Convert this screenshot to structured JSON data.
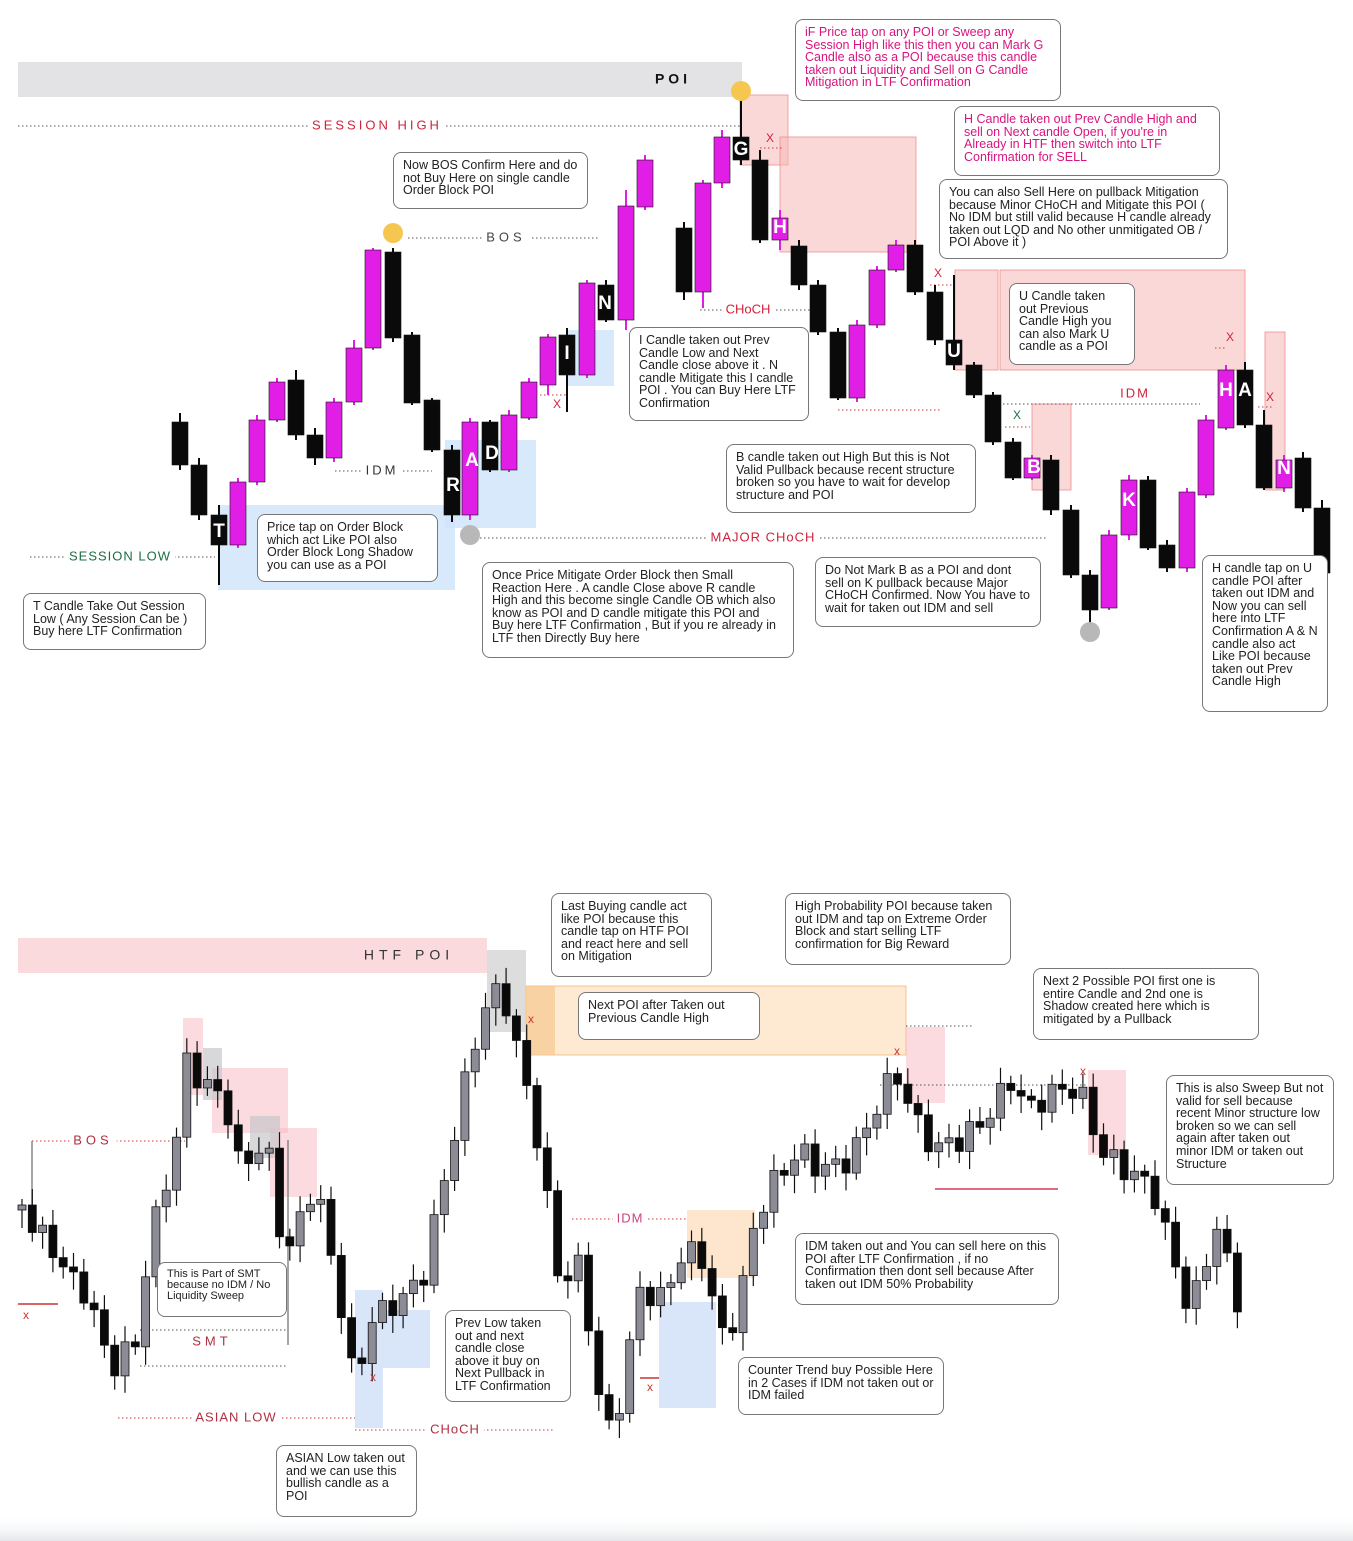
{
  "top": {
    "poi_label": "POI",
    "session_high": "SESSION HIGH",
    "bos": "BOS",
    "idm_left": "IDM",
    "idm_right": "IDM",
    "session_low": "SESSION LOW",
    "choch": "CHoCH",
    "major_choch": "MAJOR CHoCH",
    "candle_labels": [
      "T",
      "R",
      "A",
      "D",
      "I",
      "N",
      "G",
      "H",
      "U",
      "B",
      "K",
      "H",
      "A",
      "N"
    ],
    "x_marks": [
      "X",
      "X",
      "X",
      "X",
      "X",
      "X"
    ],
    "callouts": [
      "iF Price tap on any POI or Sweep any Session High like this then you can Mark G Candle also as a POI because this candle taken out Liquidity and Sell on G Candle Mitigation in LTF Confirmation",
      "H Candle taken out Prev Candle High and sell on Next candle Open, if you're in Already in HTF then switch into LTF Confirmation for SELL",
      "Now BOS Confirm Here and do not Buy Here on single candle Order Block POI",
      "You can also Sell Here on pullback Mitigation because Minor CHoCH and Mitigate this POI ( No IDM but still valid because H candle already taken out LQD and No other unmitigated OB / POI Above it )",
      "U Candle taken out Previous Candle High you can also Mark U candle as a POI",
      "I Candle taken out Prev Candle Low and Next Candle close above it . N candle Mitigate this I candle POI . You can Buy Here LTF Confirmation",
      "B candle taken out High But this is Not Valid Pullback because recent structure broken so you have to wait for develop structure and POI",
      "Price tap on Order Block which act Like POI also Order Block Long Shadow you can use as a POI",
      "T Candle Take Out Session Low ( Any Session Can be ) Buy here LTF Confirmation",
      "Once Price Mitigate Order Block then Small Reaction Here . A candle Close above R candle High and this become single Candle OB which also know as POI and D candle mitigate this POI and Buy here LTF Confirmation , But if you re already in LTF then Directly Buy here",
      "Do Not Mark B as a POI and dont sell on K pullback because Major CHoCH Confirmed. Now You have to wait for taken out IDM and sell",
      "H candle tap on U candle POI after taken out IDM and Now you can sell here into LTF Confirmation A & N candle also act Like POI because taken out Prev Candle High"
    ]
  },
  "bottom": {
    "htf_poi": "HTF POI",
    "bos": "BOS",
    "smt": "SMT",
    "asian_low": "ASIAN LOW",
    "choch": "CHoCH",
    "idm": "IDM",
    "x_marks": [
      "x",
      "x",
      "x",
      "x",
      "x",
      "x"
    ],
    "callouts": [
      "Last Buying candle act like POI because this candle tap on HTF POI and react here and sell on Mitigation",
      "High Probability POI because taken out IDM and tap on Extreme Order Block and start selling LTF confirmation for Big Reward",
      "Next POI after Taken out Previous Candle High",
      "Next 2 Possible POI first one is entire Candle and 2nd one is Shadow created here which is mitigated by a Pullback",
      "This is also Sweep But not valid for sell because recent Minor structure low broken so we can sell again after taken out minor IDM or taken out Structure",
      "This is Part of SMT because no IDM / No Liquidity Sweep",
      "Prev Low taken out and next candle close above it buy on Next Pullback in LTF Confirmation",
      "IDM taken out and You can sell here on this POI after LTF Confirmation , if no Confirmation then dont sell because After taken out IDM 50% Probability",
      "Counter Trend buy Possible Here in 2 Cases if IDM not taken out or IDM failed",
      "ASIAN Low taken out and we can use this bullish candle as a POI"
    ]
  }
}
